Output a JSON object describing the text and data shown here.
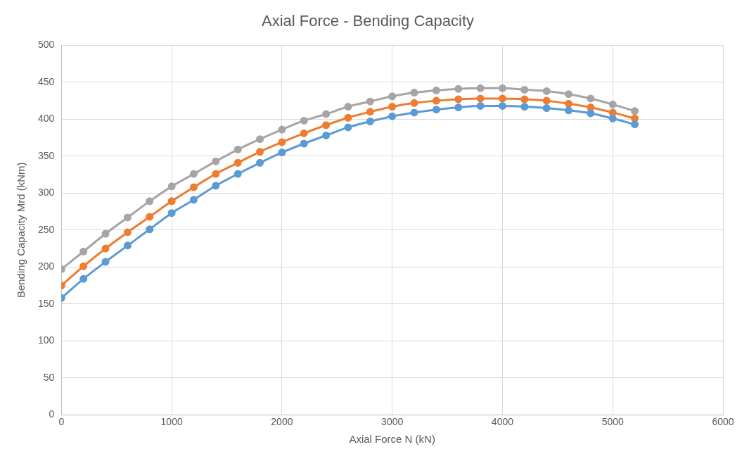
{
  "chart_data": {
    "type": "line",
    "title": "Axial Force - Bending Capacity",
    "xlabel": "Axial Force N (kN)",
    "ylabel": "Bending Capacity Mrd (kNm)",
    "x": [
      0,
      200,
      400,
      600,
      800,
      1000,
      1200,
      1400,
      1600,
      1800,
      2000,
      2200,
      2400,
      2600,
      2800,
      3000,
      3200,
      3400,
      3600,
      3800,
      4000,
      4200,
      4400,
      4600,
      4800,
      5000,
      5200
    ],
    "series": [
      {
        "color": "#5b9bd5",
        "values": [
          158,
          184,
          207,
          229,
          251,
          273,
          291,
          310,
          326,
          341,
          355,
          367,
          378,
          389,
          397,
          404,
          409,
          413,
          416,
          418,
          418,
          417,
          415,
          412,
          408,
          401,
          393
        ]
      },
      {
        "color": "#ed7d31",
        "values": [
          175,
          201,
          225,
          247,
          268,
          289,
          308,
          326,
          341,
          356,
          369,
          381,
          392,
          402,
          410,
          417,
          422,
          425,
          427,
          428,
          428,
          427,
          425,
          421,
          416,
          409,
          401
        ]
      },
      {
        "color": "#a5a5a5",
        "values": [
          197,
          221,
          245,
          267,
          289,
          309,
          326,
          343,
          359,
          373,
          386,
          398,
          407,
          417,
          424,
          431,
          436,
          439,
          441,
          442,
          442,
          440,
          438,
          434,
          428,
          420,
          411
        ]
      }
    ],
    "xlim": [
      0,
      6000
    ],
    "xticks": [
      0,
      1000,
      2000,
      3000,
      4000,
      5000,
      6000
    ],
    "ylim": [
      0,
      500
    ],
    "yticks": [
      0,
      50,
      100,
      150,
      200,
      250,
      300,
      350,
      400,
      450,
      500
    ],
    "grid": true,
    "marker": "circle",
    "line_style": "solid"
  }
}
